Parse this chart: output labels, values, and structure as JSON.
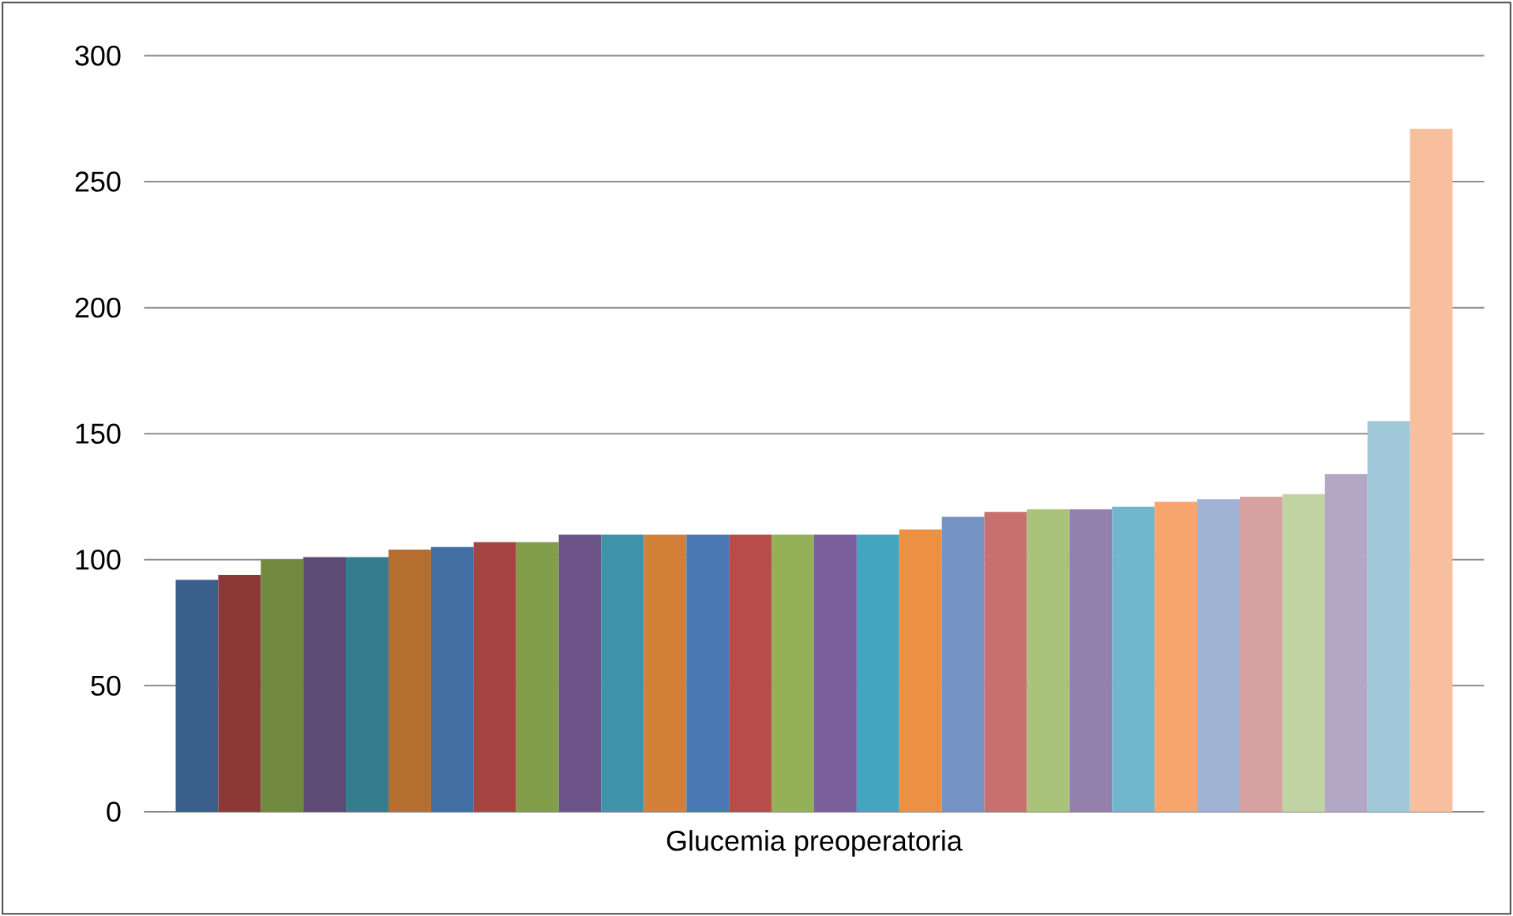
{
  "chart_data": {
    "type": "bar",
    "xlabel": "Glucemia preoperatoria",
    "categories": [
      null,
      null,
      null,
      null,
      null,
      null,
      null,
      null,
      null,
      null,
      null,
      null,
      null,
      null,
      null,
      null,
      null,
      null,
      null,
      null,
      null,
      null,
      null,
      null,
      null,
      null,
      null,
      null,
      null,
      null
    ],
    "values": [
      92,
      94,
      100,
      101,
      101,
      104,
      105,
      107,
      107,
      110,
      110,
      110,
      110,
      110,
      110,
      110,
      110,
      112,
      117,
      119,
      120,
      120,
      121,
      123,
      124,
      125,
      126,
      134,
      155,
      271
    ],
    "colors": [
      "#3a5f8b",
      "#8c3836",
      "#71893f",
      "#5d4a75",
      "#357c8f",
      "#b56d30",
      "#416ea3",
      "#a64441",
      "#839e4b",
      "#6c5489",
      "#3f92a9",
      "#d37f38",
      "#4a79b4",
      "#b84c4a",
      "#94b157",
      "#7b5e9c",
      "#45a4be",
      "#ec9043",
      "#7594c4",
      "#c8706f",
      "#a9c37a",
      "#9480ad",
      "#71b6cd",
      "#f7a56d",
      "#a0b2d3",
      "#d7a1a1",
      "#c1d2a3",
      "#b2a7c5",
      "#a0c8d8",
      "#f8bf9f"
    ],
    "ylim": [
      0,
      300
    ],
    "yticks": [
      0,
      50,
      100,
      150,
      200,
      250,
      300
    ],
    "grid": "y"
  }
}
